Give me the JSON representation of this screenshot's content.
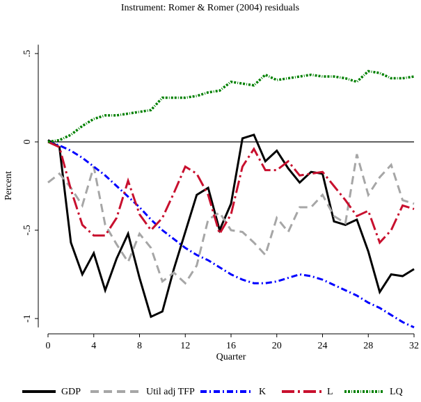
{
  "chart_data": {
    "type": "line",
    "title": "Instrument: Romer & Romer (2004) residuals",
    "xlabel": "Quarter",
    "ylabel": "Percent",
    "x": [
      0,
      1,
      2,
      3,
      4,
      5,
      6,
      7,
      8,
      9,
      10,
      11,
      12,
      13,
      14,
      15,
      16,
      17,
      18,
      19,
      20,
      21,
      22,
      23,
      24,
      25,
      26,
      27,
      28,
      29,
      30,
      31,
      32
    ],
    "xlim": [
      0,
      32
    ],
    "xticks": [
      0,
      4,
      8,
      12,
      16,
      20,
      24,
      28,
      32
    ],
    "ylim": [
      -1.05,
      0.55
    ],
    "yticks": [
      {
        "value": 0.5,
        "label": ".5"
      },
      0,
      {
        "value": -0.5,
        "label": "-.5"
      },
      -1
    ],
    "series": [
      {
        "name": "GDP",
        "color": "#000000",
        "values": [
          0.01,
          -0.03,
          -0.57,
          -0.75,
          -0.63,
          -0.84,
          -0.66,
          -0.52,
          -0.77,
          -0.99,
          -0.96,
          -0.72,
          -0.51,
          -0.3,
          -0.26,
          -0.5,
          -0.35,
          0.02,
          0.04,
          -0.11,
          -0.05,
          -0.15,
          -0.23,
          -0.17,
          -0.18,
          -0.45,
          -0.47,
          -0.44,
          -0.62,
          -0.85,
          -0.75,
          -0.76,
          -0.72
        ]
      },
      {
        "name": "Util adj TFP",
        "color": "#a6a6a6",
        "values": [
          -0.23,
          -0.18,
          -0.26,
          -0.36,
          -0.14,
          -0.47,
          -0.58,
          -0.68,
          -0.52,
          -0.6,
          -0.79,
          -0.74,
          -0.8,
          -0.7,
          -0.44,
          -0.4,
          -0.5,
          -0.51,
          -0.57,
          -0.64,
          -0.43,
          -0.51,
          -0.37,
          -0.37,
          -0.3,
          -0.42,
          -0.46,
          -0.07,
          -0.3,
          -0.2,
          -0.13,
          -0.33,
          -0.35
        ]
      },
      {
        "name": "K",
        "color": "#0000ff",
        "values": [
          0.0,
          -0.02,
          -0.05,
          -0.09,
          -0.14,
          -0.19,
          -0.25,
          -0.31,
          -0.37,
          -0.44,
          -0.5,
          -0.55,
          -0.6,
          -0.64,
          -0.67,
          -0.71,
          -0.75,
          -0.78,
          -0.8,
          -0.8,
          -0.79,
          -0.77,
          -0.75,
          -0.76,
          -0.78,
          -0.81,
          -0.84,
          -0.87,
          -0.91,
          -0.94,
          -0.98,
          -1.02,
          -1.05
        ]
      },
      {
        "name": "L",
        "color": "#c8102e",
        "values": [
          0.0,
          -0.03,
          -0.27,
          -0.47,
          -0.53,
          -0.53,
          -0.43,
          -0.22,
          -0.41,
          -0.5,
          -0.43,
          -0.29,
          -0.14,
          -0.18,
          -0.3,
          -0.52,
          -0.41,
          -0.14,
          -0.04,
          -0.16,
          -0.16,
          -0.11,
          -0.19,
          -0.18,
          -0.17,
          -0.25,
          -0.33,
          -0.42,
          -0.39,
          -0.57,
          -0.5,
          -0.36,
          -0.38
        ]
      },
      {
        "name": "LQ",
        "color": "#008000",
        "values": [
          0.0,
          0.01,
          0.04,
          0.09,
          0.13,
          0.15,
          0.15,
          0.16,
          0.17,
          0.18,
          0.25,
          0.25,
          0.25,
          0.26,
          0.28,
          0.29,
          0.34,
          0.33,
          0.32,
          0.38,
          0.35,
          0.36,
          0.37,
          0.38,
          0.37,
          0.37,
          0.36,
          0.34,
          0.4,
          0.39,
          0.36,
          0.36,
          0.37
        ]
      }
    ]
  }
}
